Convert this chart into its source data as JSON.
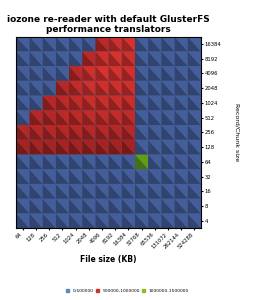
{
  "title": "iozone re-reader with default GlusterFS\nperformance translators",
  "xlabel": "File size (KB)",
  "ylabel": "Record/Chunk size",
  "file_sizes": [
    64,
    128,
    256,
    512,
    1024,
    2048,
    4096,
    8192,
    16384,
    32768,
    65536,
    131072,
    262144,
    524288
  ],
  "record_sizes": [
    4,
    8,
    16,
    32,
    64,
    128,
    256,
    512,
    1024,
    2048,
    4096,
    8192,
    16384
  ],
  "legend_colors": [
    "#5b8ab5",
    "#cc3333",
    "#88bb33"
  ],
  "legend_labels": [
    "0-500000",
    "500000-1000000",
    "1000000-1500000"
  ],
  "background": "#ffffff",
  "heatmap": [
    [
      200000,
      200000,
      200000,
      200000,
      200000,
      200000,
      200000,
      200000,
      200000,
      200000,
      200000,
      200000,
      200000,
      200000
    ],
    [
      200000,
      200000,
      200000,
      200000,
      200000,
      200000,
      200000,
      200000,
      200000,
      200000,
      200000,
      200000,
      200000,
      200000
    ],
    [
      200000,
      200000,
      200000,
      200000,
      200000,
      200000,
      200000,
      200000,
      200000,
      200000,
      200000,
      200000,
      200000,
      200000
    ],
    [
      200000,
      200000,
      200000,
      200000,
      200000,
      200000,
      200000,
      200000,
      200000,
      200000,
      200000,
      200000,
      200000,
      200000
    ],
    [
      200000,
      200000,
      200000,
      200000,
      200000,
      200000,
      200000,
      200000,
      200000,
      1100000,
      200000,
      200000,
      200000,
      200000
    ],
    [
      600000,
      600000,
      600000,
      600000,
      600000,
      600000,
      600000,
      600000,
      600000,
      200000,
      200000,
      200000,
      200000,
      200000
    ],
    [
      700000,
      700000,
      700000,
      700000,
      700000,
      700000,
      700000,
      700000,
      700000,
      200000,
      200000,
      200000,
      200000,
      200000
    ],
    [
      200000,
      700000,
      700000,
      750000,
      750000,
      800000,
      800000,
      800000,
      800000,
      200000,
      200000,
      200000,
      200000,
      200000
    ],
    [
      200000,
      200000,
      700000,
      750000,
      800000,
      850000,
      850000,
      850000,
      850000,
      200000,
      200000,
      200000,
      200000,
      200000
    ],
    [
      200000,
      200000,
      200000,
      700000,
      800000,
      900000,
      900000,
      900000,
      900000,
      200000,
      200000,
      200000,
      200000,
      200000
    ],
    [
      200000,
      200000,
      200000,
      200000,
      750000,
      900000,
      950000,
      950000,
      900000,
      200000,
      200000,
      200000,
      200000,
      200000
    ],
    [
      200000,
      200000,
      200000,
      200000,
      200000,
      750000,
      900000,
      950000,
      900000,
      200000,
      200000,
      200000,
      200000,
      200000
    ],
    [
      200000,
      200000,
      200000,
      200000,
      200000,
      200000,
      750000,
      900000,
      950000,
      200000,
      200000,
      200000,
      200000,
      200000
    ]
  ]
}
